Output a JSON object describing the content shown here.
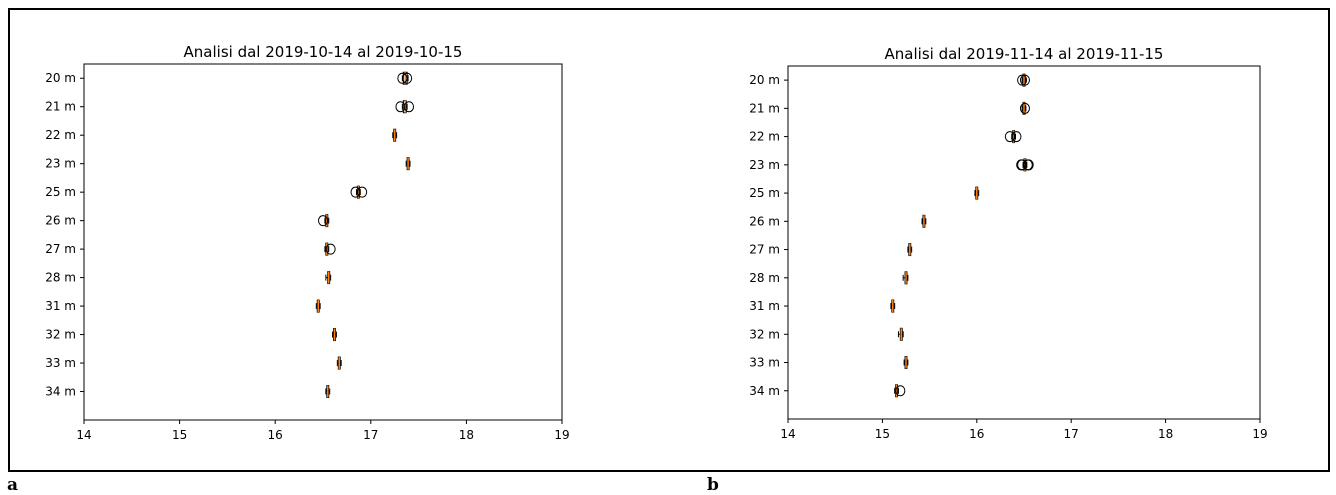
{
  "panel_labels": [
    "a",
    "b"
  ],
  "colors": {
    "median": "#ff7f0e",
    "box": "#000000",
    "frame": "#000000"
  },
  "chart_data": [
    {
      "type": "box",
      "orientation": "horizontal",
      "title": "Analisi dal 2019-10-14 al 2019-10-15",
      "xlim": [
        14,
        19
      ],
      "xticks": [
        14,
        15,
        16,
        17,
        18,
        19
      ],
      "categories": [
        "20 m",
        "21 m",
        "22 m",
        "23 m",
        "25 m",
        "26 m",
        "27 m",
        "28 m",
        "31 m",
        "32 m",
        "33 m",
        "34 m"
      ],
      "boxes": [
        {
          "q1": 17.34,
          "median": 17.36,
          "q3": 17.38,
          "whislo": 17.33,
          "whishi": 17.39,
          "fliers": [
            17.33,
            17.38
          ]
        },
        {
          "q1": 17.34,
          "median": 17.36,
          "q3": 17.37,
          "whislo": 17.33,
          "whishi": 17.38,
          "fliers": [
            17.31,
            17.4
          ]
        },
        {
          "q1": 17.24,
          "median": 17.25,
          "q3": 17.26,
          "whislo": 17.23,
          "whishi": 17.27,
          "fliers": []
        },
        {
          "q1": 17.38,
          "median": 17.39,
          "q3": 17.4,
          "whislo": 17.37,
          "whishi": 17.41,
          "fliers": []
        },
        {
          "q1": 16.86,
          "median": 16.87,
          "q3": 16.88,
          "whislo": 16.85,
          "whishi": 16.89,
          "fliers": [
            16.84,
            16.91
          ]
        },
        {
          "q1": 16.53,
          "median": 16.54,
          "q3": 16.55,
          "whislo": 16.52,
          "whishi": 16.56,
          "fliers": [
            16.5
          ]
        },
        {
          "q1": 16.53,
          "median": 16.54,
          "q3": 16.55,
          "whislo": 16.52,
          "whishi": 16.56,
          "fliers": [
            16.58
          ]
        },
        {
          "q1": 16.55,
          "median": 16.56,
          "q3": 16.57,
          "whislo": 16.53,
          "whishi": 16.58,
          "fliers": []
        },
        {
          "q1": 16.44,
          "median": 16.45,
          "q3": 16.46,
          "whislo": 16.43,
          "whishi": 16.47,
          "fliers": []
        },
        {
          "q1": 16.61,
          "median": 16.62,
          "q3": 16.63,
          "whislo": 16.6,
          "whishi": 16.64,
          "fliers": []
        },
        {
          "q1": 16.66,
          "median": 16.67,
          "q3": 16.68,
          "whislo": 16.65,
          "whishi": 16.69,
          "fliers": []
        },
        {
          "q1": 16.54,
          "median": 16.55,
          "q3": 16.56,
          "whislo": 16.53,
          "whishi": 16.57,
          "fliers": []
        }
      ]
    },
    {
      "type": "box",
      "orientation": "horizontal",
      "title": "Analisi dal 2019-11-14 al 2019-11-15",
      "xlim": [
        14,
        19
      ],
      "xticks": [
        14,
        15,
        16,
        17,
        18,
        19
      ],
      "categories": [
        "20 m",
        "21 m",
        "22 m",
        "23 m",
        "25 m",
        "26 m",
        "27 m",
        "28 m",
        "31 m",
        "32 m",
        "33 m",
        "34 m"
      ],
      "boxes": [
        {
          "q1": 16.49,
          "median": 16.5,
          "q3": 16.51,
          "whislo": 16.48,
          "whishi": 16.52,
          "fliers": [
            16.48,
            16.51
          ]
        },
        {
          "q1": 16.49,
          "median": 16.5,
          "q3": 16.51,
          "whislo": 16.48,
          "whishi": 16.52,
          "fliers": [
            16.51
          ]
        },
        {
          "q1": 16.38,
          "median": 16.39,
          "q3": 16.4,
          "whislo": 16.37,
          "whishi": 16.41,
          "fliers": [
            16.35,
            16.42
          ]
        },
        {
          "q1": 16.5,
          "median": 16.51,
          "q3": 16.52,
          "whislo": 16.49,
          "whishi": 16.53,
          "fliers": [
            16.47,
            16.48,
            16.54,
            16.55
          ]
        },
        {
          "q1": 15.99,
          "median": 16.0,
          "q3": 16.01,
          "whislo": 15.98,
          "whishi": 16.02,
          "fliers": []
        },
        {
          "q1": 15.43,
          "median": 15.44,
          "q3": 15.45,
          "whislo": 15.42,
          "whishi": 15.46,
          "fliers": []
        },
        {
          "q1": 15.28,
          "median": 15.29,
          "q3": 15.3,
          "whislo": 15.27,
          "whishi": 15.31,
          "fliers": []
        },
        {
          "q1": 15.24,
          "median": 15.25,
          "q3": 15.26,
          "whislo": 15.22,
          "whishi": 15.27,
          "fliers": []
        },
        {
          "q1": 15.1,
          "median": 15.11,
          "q3": 15.12,
          "whislo": 15.09,
          "whishi": 15.13,
          "fliers": []
        },
        {
          "q1": 15.19,
          "median": 15.2,
          "q3": 15.21,
          "whislo": 15.17,
          "whishi": 15.22,
          "fliers": []
        },
        {
          "q1": 15.24,
          "median": 15.25,
          "q3": 15.26,
          "whislo": 15.23,
          "whishi": 15.27,
          "fliers": []
        },
        {
          "q1": 15.14,
          "median": 15.15,
          "q3": 15.16,
          "whislo": 15.13,
          "whishi": 15.17,
          "fliers": [
            15.19
          ]
        }
      ]
    }
  ]
}
